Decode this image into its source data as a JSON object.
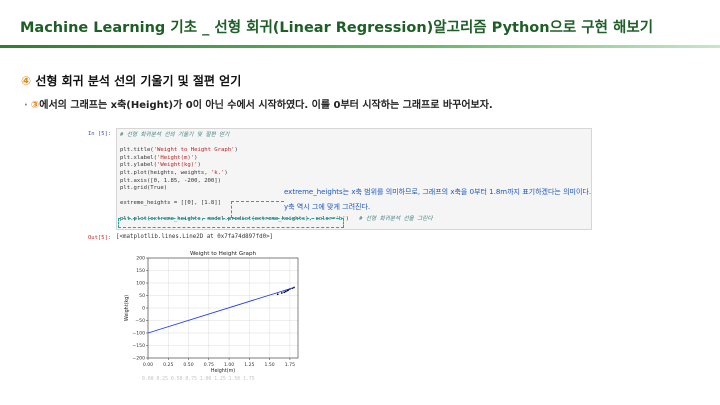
{
  "slide": {
    "title": "Machine Learning 기초 _ 선형 회귀(Linear Regression)알고리즘 Python으로 구현 해보기",
    "step_number": "④",
    "step_heading": " 선형 회귀 분석 선의 기울기 및 절편 얻기",
    "bullet_marker": "·",
    "bullet_circle": "③",
    "bullet_text": "에서의 그래프는 x축(Height)가 0이 아닌 수에서 시작하였다. 이를 0부터 시작하는 그래프로 바꾸어보자."
  },
  "cell": {
    "in_prompt": "In [5]:",
    "out_prompt": "Out[5]:",
    "code_lines": [
      {
        "parts": [
          {
            "t": "# 선형 회귀분석 선의 기울기 및 절편 얻기",
            "c": "c-comment"
          }
        ]
      },
      {
        "parts": [
          {
            "t": "",
            "c": ""
          }
        ]
      },
      {
        "parts": [
          {
            "t": "plt.title(",
            "c": ""
          },
          {
            "t": "'Weight to Height Graph'",
            "c": "c-string"
          },
          {
            "t": ")",
            "c": ""
          }
        ]
      },
      {
        "parts": [
          {
            "t": "plt.xlabel(",
            "c": ""
          },
          {
            "t": "'Height(m)'",
            "c": "c-string"
          },
          {
            "t": ")",
            "c": ""
          }
        ]
      },
      {
        "parts": [
          {
            "t": "plt.ylabel(",
            "c": ""
          },
          {
            "t": "'Weight(kg)'",
            "c": "c-string"
          },
          {
            "t": ")",
            "c": ""
          }
        ]
      },
      {
        "parts": [
          {
            "t": "plt.plot(heights, weights, ",
            "c": ""
          },
          {
            "t": "'k.'",
            "c": "c-string"
          },
          {
            "t": ")",
            "c": ""
          }
        ]
      },
      {
        "parts": [
          {
            "t": "plt.axis([0, 1.85, -200, 200])",
            "c": ""
          }
        ]
      },
      {
        "parts": [
          {
            "t": "plt.grid(True)",
            "c": ""
          }
        ]
      },
      {
        "parts": [
          {
            "t": "",
            "c": ""
          }
        ]
      },
      {
        "parts": [
          {
            "t": "extreme_heights = [[0], [1.8]]",
            "c": ""
          }
        ]
      },
      {
        "parts": [
          {
            "t": "",
            "c": ""
          }
        ]
      },
      {
        "parts": [
          {
            "t": "plt.plot(extreme_heights, model.predict(extreme_heights), color=",
            "c": ""
          },
          {
            "t": "'b'",
            "c": "c-string"
          },
          {
            "t": ")   ",
            "c": ""
          },
          {
            "t": "# 선형 회귀분석 선을 그린다",
            "c": "c-comment"
          }
        ]
      }
    ],
    "output_text": "[<matplotlib.lines.Line2D at 0x7fa74d897fd0>]",
    "ghost_text": "0.00   0.25   0.50   0.75   1.00   1.25   1.50   1.75"
  },
  "annotation": {
    "line1": "extreme_heights는 x축 범위를 의미하므로, 그래프의 x축을 0부터 1.8m까지 표기하겠다는 의미이다.",
    "line2": "y축 역시 그에 맞게 그려진다."
  },
  "chart_data": {
    "type": "line",
    "title": "Weight to Height Graph",
    "xlabel": "Height(m)",
    "ylabel": "Weight(kg)",
    "xlim": [
      0,
      1.85
    ],
    "ylim": [
      -200,
      200
    ],
    "grid": true,
    "xticks": [
      0.0,
      0.25,
      0.5,
      0.75,
      1.0,
      1.25,
      1.5,
      1.75
    ],
    "xtick_labels": [
      "0.00",
      "0.25",
      "0.50",
      "0.75",
      "1.00",
      "1.25",
      "1.50",
      "1.75"
    ],
    "yticks": [
      -200,
      -150,
      -100,
      -50,
      0,
      50,
      100,
      150,
      200
    ],
    "ytick_labels": [
      "−200",
      "−150",
      "−100",
      "−50",
      "0",
      "50",
      "100",
      "150",
      "200"
    ],
    "series": [
      {
        "style": "k.",
        "color": "#000000",
        "x": [
          1.6,
          1.65,
          1.68,
          1.7,
          1.72,
          1.73,
          1.75,
          1.78,
          1.8
        ],
        "y": [
          55,
          60,
          63,
          66,
          70,
          72,
          76,
          79,
          82
        ]
      },
      {
        "style": "line",
        "color": "#1f3de8",
        "x": [
          0,
          1.8
        ],
        "y": [
          -100,
          82
        ]
      }
    ]
  }
}
